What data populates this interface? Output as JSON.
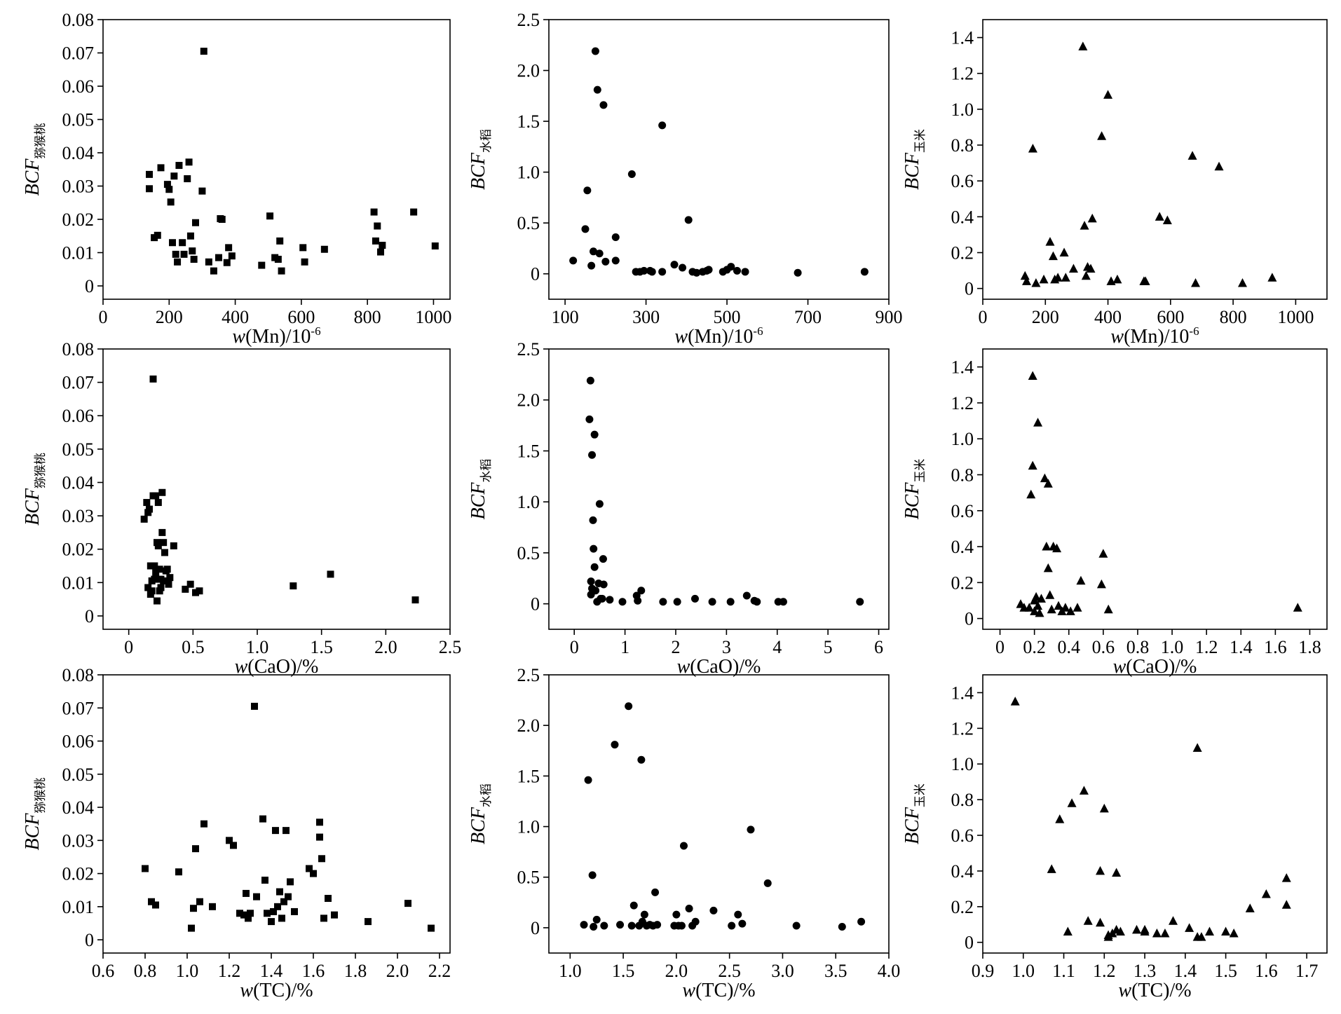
{
  "styles": {
    "marker_color": "#000000",
    "axis_color": "#000000",
    "background": "#ffffff"
  },
  "chart_data": [
    {
      "type": "scatter",
      "marker": "square",
      "xlabel": {
        "italic": "w",
        "text": "(Mn)/10",
        "sup": "-6"
      },
      "ylabel": {
        "italic": "BCF",
        "sub": "猕猴桃"
      },
      "xlim": [
        0,
        1050
      ],
      "ylim": [
        -0.004,
        0.08
      ],
      "xticks": [
        "0",
        "200",
        "400",
        "600",
        "800",
        "1000"
      ],
      "xtick_values": [
        0,
        200,
        400,
        600,
        800,
        1000
      ],
      "yticks": [
        "0",
        "0.01",
        "0.02",
        "0.03",
        "0.04",
        "0.05",
        "0.06",
        "0.07",
        "0.08"
      ],
      "ytick_values": [
        0,
        0.01,
        0.02,
        0.03,
        0.04,
        0.05,
        0.06,
        0.07,
        0.08
      ],
      "x": [
        140,
        140,
        155,
        165,
        175,
        195,
        200,
        205,
        210,
        215,
        220,
        225,
        230,
        240,
        245,
        255,
        260,
        265,
        270,
        275,
        280,
        300,
        305,
        320,
        335,
        350,
        355,
        360,
        375,
        380,
        390,
        480,
        505,
        520,
        530,
        535,
        540,
        605,
        610,
        670,
        820,
        825,
        830,
        840,
        845,
        940,
        1005
      ],
      "y": [
        0.0335,
        0.0292,
        0.0145,
        0.0152,
        0.0355,
        0.0305,
        0.029,
        0.0252,
        0.013,
        0.033,
        0.0095,
        0.0072,
        0.0362,
        0.013,
        0.0095,
        0.0322,
        0.0372,
        0.015,
        0.0105,
        0.008,
        0.019,
        0.0285,
        0.0705,
        0.0072,
        0.0045,
        0.0085,
        0.0202,
        0.02,
        0.007,
        0.0115,
        0.009,
        0.0062,
        0.021,
        0.0085,
        0.008,
        0.0135,
        0.0045,
        0.0115,
        0.0072,
        0.011,
        0.0222,
        0.0135,
        0.018,
        0.0102,
        0.0122,
        0.0222,
        0.012
      ]
    },
    {
      "type": "scatter",
      "marker": "circle",
      "xlabel": {
        "italic": "w",
        "text": "(Mn)/10",
        "sup": "-6"
      },
      "ylabel": {
        "italic": "BCF",
        "sub": "水稻"
      },
      "xlim": [
        60,
        900
      ],
      "ylim": [
        -0.25,
        2.5
      ],
      "xticks": [
        "100",
        "300",
        "500",
        "700",
        "900"
      ],
      "xtick_values": [
        100,
        300,
        500,
        700,
        900
      ],
      "yticks": [
        "0",
        "0.5",
        "1.0",
        "1.5",
        "2.0",
        "2.5"
      ],
      "ytick_values": [
        0,
        0.5,
        1.0,
        1.5,
        2.0,
        2.5
      ],
      "x": [
        120,
        150,
        155,
        165,
        170,
        175,
        180,
        185,
        195,
        200,
        225,
        225,
        265,
        275,
        285,
        295,
        310,
        315,
        340,
        340,
        370,
        390,
        405,
        415,
        425,
        440,
        450,
        455,
        490,
        500,
        510,
        525,
        545,
        675,
        840
      ],
      "y": [
        0.13,
        0.44,
        0.82,
        0.08,
        0.22,
        2.19,
        1.81,
        0.2,
        1.66,
        0.12,
        0.36,
        0.13,
        0.98,
        0.02,
        0.02,
        0.03,
        0.03,
        0.02,
        1.46,
        0.02,
        0.09,
        0.06,
        0.53,
        0.02,
        0.01,
        0.02,
        0.03,
        0.04,
        0.02,
        0.04,
        0.07,
        0.03,
        0.02,
        0.01,
        0.02
      ]
    },
    {
      "type": "scatter",
      "marker": "triangle",
      "xlabel": {
        "italic": "w",
        "text": "(Mn)/10",
        "sup": "-6"
      },
      "ylabel": {
        "italic": "BCF",
        "sub": "玉米"
      },
      "xlim": [
        0,
        1100
      ],
      "ylim": [
        -0.06,
        1.5
      ],
      "xticks": [
        "0",
        "200",
        "400",
        "600",
        "800",
        "1000"
      ],
      "xtick_values": [
        0,
        200,
        400,
        600,
        800,
        1000
      ],
      "yticks": [
        "0",
        "0.2",
        "0.4",
        "0.6",
        "0.8",
        "1.0",
        "1.2",
        "1.4"
      ],
      "ytick_values": [
        0,
        0.2,
        0.4,
        0.6,
        0.8,
        1.0,
        1.2,
        1.4
      ],
      "x": [
        135,
        140,
        160,
        170,
        195,
        215,
        225,
        230,
        240,
        260,
        265,
        290,
        320,
        325,
        330,
        335,
        345,
        350,
        380,
        400,
        410,
        430,
        515,
        520,
        565,
        590,
        680,
        670,
        755,
        830,
        925
      ],
      "y": [
        0.07,
        0.04,
        0.78,
        0.03,
        0.05,
        0.26,
        0.18,
        0.05,
        0.06,
        0.2,
        0.06,
        0.11,
        1.35,
        0.35,
        0.07,
        0.12,
        0.11,
        0.39,
        0.85,
        1.08,
        0.04,
        0.05,
        0.04,
        0.04,
        0.4,
        0.38,
        0.03,
        0.74,
        0.68,
        0.03,
        0.06
      ]
    },
    {
      "type": "scatter",
      "marker": "square",
      "xlabel": {
        "italic": "w",
        "text": "(CaO)/%",
        "sup": ""
      },
      "ylabel": {
        "italic": "BCF",
        "sub": "猕猴桃"
      },
      "xlim": [
        -0.2,
        2.5
      ],
      "ylim": [
        -0.004,
        0.08
      ],
      "xticks": [
        "0",
        "0.5",
        "1.0",
        "1.5",
        "2.0",
        "2.5"
      ],
      "xtick_values": [
        0,
        0.5,
        1.0,
        1.5,
        2.0,
        2.5
      ],
      "yticks": [
        "0",
        "0.01",
        "0.02",
        "0.03",
        "0.04",
        "0.05",
        "0.06",
        "0.07",
        "0.08"
      ],
      "ytick_values": [
        0,
        0.01,
        0.02,
        0.03,
        0.04,
        0.05,
        0.06,
        0.07,
        0.08
      ],
      "x": [
        0.12,
        0.14,
        0.15,
        0.16,
        0.17,
        0.18,
        0.19,
        0.19,
        0.2,
        0.2,
        0.21,
        0.21,
        0.22,
        0.22,
        0.23,
        0.23,
        0.24,
        0.25,
        0.25,
        0.26,
        0.26,
        0.27,
        0.28,
        0.29,
        0.3,
        0.31,
        0.32,
        0.35,
        0.44,
        0.48,
        0.52,
        0.55,
        1.28,
        1.57,
        2.23,
        0.15,
        0.17,
        0.18,
        0.24,
        0.27
      ],
      "y": [
        0.029,
        0.034,
        0.031,
        0.032,
        0.015,
        0.0075,
        0.036,
        0.071,
        0.015,
        0.011,
        0.036,
        0.013,
        0.0045,
        0.022,
        0.021,
        0.034,
        0.014,
        0.011,
        0.0085,
        0.037,
        0.025,
        0.022,
        0.019,
        0.0135,
        0.014,
        0.0095,
        0.0115,
        0.021,
        0.008,
        0.0095,
        0.007,
        0.0075,
        0.009,
        0.0125,
        0.0048,
        0.0085,
        0.0065,
        0.0105,
        0.0075,
        0.0105
      ]
    },
    {
      "type": "scatter",
      "marker": "circle",
      "xlabel": {
        "italic": "w",
        "text": "(CaO)/%",
        "sup": ""
      },
      "ylabel": {
        "italic": "BCF",
        "sub": "水稻"
      },
      "xlim": [
        -0.5,
        6.2
      ],
      "ylim": [
        -0.25,
        2.5
      ],
      "xticks": [
        "0",
        "1",
        "2",
        "3",
        "4",
        "5",
        "6"
      ],
      "xtick_values": [
        0,
        1,
        2,
        3,
        4,
        5,
        6
      ],
      "yticks": [
        "0",
        "0.5",
        "1.0",
        "1.5",
        "2.0",
        "2.5"
      ],
      "ytick_values": [
        0,
        0.5,
        1.0,
        1.5,
        2.0,
        2.5
      ],
      "x": [
        0.3,
        0.32,
        0.33,
        0.33,
        0.35,
        0.37,
        0.38,
        0.4,
        0.4,
        0.42,
        0.45,
        0.48,
        0.5,
        0.52,
        0.57,
        0.58,
        0.7,
        0.95,
        1.23,
        1.25,
        1.32,
        1.75,
        2.03,
        2.38,
        2.72,
        3.08,
        3.4,
        3.55,
        3.6,
        4.02,
        4.12,
        5.63,
        0.35,
        0.55
      ],
      "y": [
        1.81,
        2.19,
        0.22,
        0.09,
        1.46,
        0.82,
        0.54,
        1.66,
        0.36,
        0.13,
        0.02,
        0.2,
        0.98,
        0.05,
        0.44,
        0.19,
        0.04,
        0.02,
        0.08,
        0.03,
        0.13,
        0.02,
        0.02,
        0.05,
        0.02,
        0.02,
        0.08,
        0.03,
        0.02,
        0.02,
        0.02,
        0.02,
        0.15,
        0.05
      ]
    },
    {
      "type": "scatter",
      "marker": "triangle",
      "xlabel": {
        "italic": "w",
        "text": "(CaO)/%",
        "sup": ""
      },
      "ylabel": {
        "italic": "BCF",
        "sub": "玉米"
      },
      "xlim": [
        -0.1,
        1.9
      ],
      "ylim": [
        -0.06,
        1.5
      ],
      "xticks": [
        "0",
        "0.2",
        "0.4",
        "0.6",
        "0.8",
        "1.0",
        "1.2",
        "1.4",
        "1.6",
        "1.8"
      ],
      "xtick_values": [
        0,
        0.2,
        0.4,
        0.6,
        0.8,
        1.0,
        1.2,
        1.4,
        1.6,
        1.8
      ],
      "yticks": [
        "0",
        "0.2",
        "0.4",
        "0.6",
        "0.8",
        "1.0",
        "1.2",
        "1.4"
      ],
      "ytick_values": [
        0,
        0.2,
        0.4,
        0.6,
        0.8,
        1.0,
        1.2,
        1.4
      ],
      "x": [
        0.12,
        0.14,
        0.17,
        0.18,
        0.19,
        0.19,
        0.2,
        0.21,
        0.22,
        0.22,
        0.23,
        0.26,
        0.27,
        0.28,
        0.28,
        0.29,
        0.3,
        0.31,
        0.33,
        0.34,
        0.36,
        0.38,
        0.41,
        0.45,
        0.47,
        0.59,
        0.6,
        0.63,
        1.73,
        0.2,
        0.24
      ],
      "y": [
        0.08,
        0.06,
        0.06,
        0.69,
        1.35,
        0.85,
        0.04,
        0.12,
        1.09,
        0.07,
        0.03,
        0.78,
        0.4,
        0.75,
        0.28,
        0.13,
        0.05,
        0.4,
        0.39,
        0.07,
        0.04,
        0.06,
        0.04,
        0.06,
        0.21,
        0.19,
        0.36,
        0.05,
        0.06,
        0.1,
        0.11
      ]
    },
    {
      "type": "scatter",
      "marker": "square",
      "xlabel": {
        "italic": "w",
        "text": "(TC)/%",
        "sup": ""
      },
      "ylabel": {
        "italic": "BCF",
        "sub": "猕猴桃"
      },
      "xlim": [
        0.6,
        2.25
      ],
      "ylim": [
        -0.004,
        0.08
      ],
      "xticks": [
        "0.6",
        "0.8",
        "1.0",
        "1.2",
        "1.4",
        "1.6",
        "1.8",
        "2.0",
        "2.2"
      ],
      "xtick_values": [
        0.6,
        0.8,
        1.0,
        1.2,
        1.4,
        1.6,
        1.8,
        2.0,
        2.2
      ],
      "yticks": [
        "0",
        "0.01",
        "0.02",
        "0.03",
        "0.04",
        "0.05",
        "0.06",
        "0.07",
        "0.08"
      ],
      "ytick_values": [
        0,
        0.01,
        0.02,
        0.03,
        0.04,
        0.05,
        0.06,
        0.07,
        0.08
      ],
      "x": [
        0.8,
        0.83,
        0.85,
        0.96,
        1.02,
        1.03,
        1.04,
        1.06,
        1.08,
        1.12,
        1.2,
        1.22,
        1.25,
        1.27,
        1.28,
        1.29,
        1.3,
        1.32,
        1.33,
        1.36,
        1.37,
        1.38,
        1.4,
        1.41,
        1.42,
        1.43,
        1.44,
        1.45,
        1.46,
        1.47,
        1.48,
        1.49,
        1.51,
        1.58,
        1.6,
        1.63,
        1.63,
        1.64,
        1.65,
        1.67,
        1.7,
        1.86,
        2.05,
        2.16
      ],
      "y": [
        0.0215,
        0.0115,
        0.0105,
        0.0205,
        0.0035,
        0.0095,
        0.0275,
        0.0115,
        0.035,
        0.01,
        0.03,
        0.0285,
        0.008,
        0.0075,
        0.014,
        0.0065,
        0.008,
        0.0705,
        0.013,
        0.0365,
        0.018,
        0.008,
        0.0055,
        0.0085,
        0.033,
        0.01,
        0.0145,
        0.0065,
        0.0115,
        0.033,
        0.013,
        0.0175,
        0.0085,
        0.0215,
        0.02,
        0.0355,
        0.031,
        0.0245,
        0.0065,
        0.0125,
        0.0075,
        0.0055,
        0.011,
        0.0035
      ]
    },
    {
      "type": "scatter",
      "marker": "circle",
      "xlabel": {
        "italic": "w",
        "text": "(TC)/%",
        "sup": ""
      },
      "ylabel": {
        "italic": "BCF",
        "sub": "水稻"
      },
      "xlim": [
        0.8,
        4.0
      ],
      "ylim": [
        -0.25,
        2.5
      ],
      "xticks": [
        "1.0",
        "1.5",
        "2.0",
        "2.5",
        "3.0",
        "3.5",
        "4.0"
      ],
      "xtick_values": [
        1.0,
        1.5,
        2.0,
        2.5,
        3.0,
        3.5,
        4.0
      ],
      "yticks": [
        "0",
        "0.5",
        "1.0",
        "1.5",
        "2.0",
        "2.5"
      ],
      "ytick_values": [
        0,
        0.5,
        1.0,
        1.5,
        2.0,
        2.5
      ],
      "x": [
        1.13,
        1.17,
        1.21,
        1.22,
        1.25,
        1.32,
        1.42,
        1.47,
        1.55,
        1.58,
        1.6,
        1.65,
        1.67,
        1.68,
        1.7,
        1.72,
        1.75,
        1.78,
        1.8,
        1.82,
        1.98,
        2.0,
        2.02,
        2.05,
        2.07,
        2.12,
        2.15,
        2.18,
        2.35,
        2.52,
        2.58,
        2.62,
        2.7,
        2.86,
        3.13,
        3.56,
        3.74
      ],
      "y": [
        0.03,
        1.46,
        0.52,
        0.01,
        0.08,
        0.02,
        1.81,
        0.03,
        2.19,
        0.02,
        0.22,
        0.02,
        1.66,
        0.06,
        0.13,
        0.02,
        0.03,
        0.02,
        0.35,
        0.03,
        0.02,
        0.13,
        0.02,
        0.02,
        0.81,
        0.19,
        0.02,
        0.06,
        0.17,
        0.02,
        0.13,
        0.04,
        0.97,
        0.44,
        0.02,
        0.01,
        0.06
      ]
    },
    {
      "type": "scatter",
      "marker": "triangle",
      "xlabel": {
        "italic": "w",
        "text": "(TC)/%",
        "sup": ""
      },
      "ylabel": {
        "italic": "BCF",
        "sub": "玉米"
      },
      "xlim": [
        0.9,
        1.75
      ],
      "ylim": [
        -0.06,
        1.5
      ],
      "xticks": [
        "0.9",
        "1.0",
        "1.1",
        "1.2",
        "1.3",
        "1.4",
        "1.5",
        "1.6",
        "1.7"
      ],
      "xtick_values": [
        0.9,
        1.0,
        1.1,
        1.2,
        1.3,
        1.4,
        1.5,
        1.6,
        1.7
      ],
      "yticks": [
        "0",
        "0.2",
        "0.4",
        "0.6",
        "0.8",
        "1.0",
        "1.2",
        "1.4"
      ],
      "ytick_values": [
        0,
        0.2,
        0.4,
        0.6,
        0.8,
        1.0,
        1.2,
        1.4
      ],
      "x": [
        0.98,
        1.07,
        1.09,
        1.11,
        1.12,
        1.15,
        1.16,
        1.19,
        1.19,
        1.2,
        1.21,
        1.21,
        1.22,
        1.23,
        1.23,
        1.24,
        1.28,
        1.3,
        1.3,
        1.33,
        1.35,
        1.37,
        1.41,
        1.43,
        1.43,
        1.44,
        1.46,
        1.5,
        1.52,
        1.56,
        1.6,
        1.65,
        1.65
      ],
      "y": [
        1.35,
        0.41,
        0.69,
        0.06,
        0.78,
        0.85,
        0.12,
        0.4,
        0.11,
        0.75,
        0.04,
        0.03,
        0.05,
        0.39,
        0.07,
        0.06,
        0.07,
        0.07,
        0.06,
        0.05,
        0.05,
        0.12,
        0.08,
        1.09,
        0.03,
        0.03,
        0.06,
        0.06,
        0.05,
        0.19,
        0.27,
        0.36,
        0.21
      ]
    }
  ]
}
